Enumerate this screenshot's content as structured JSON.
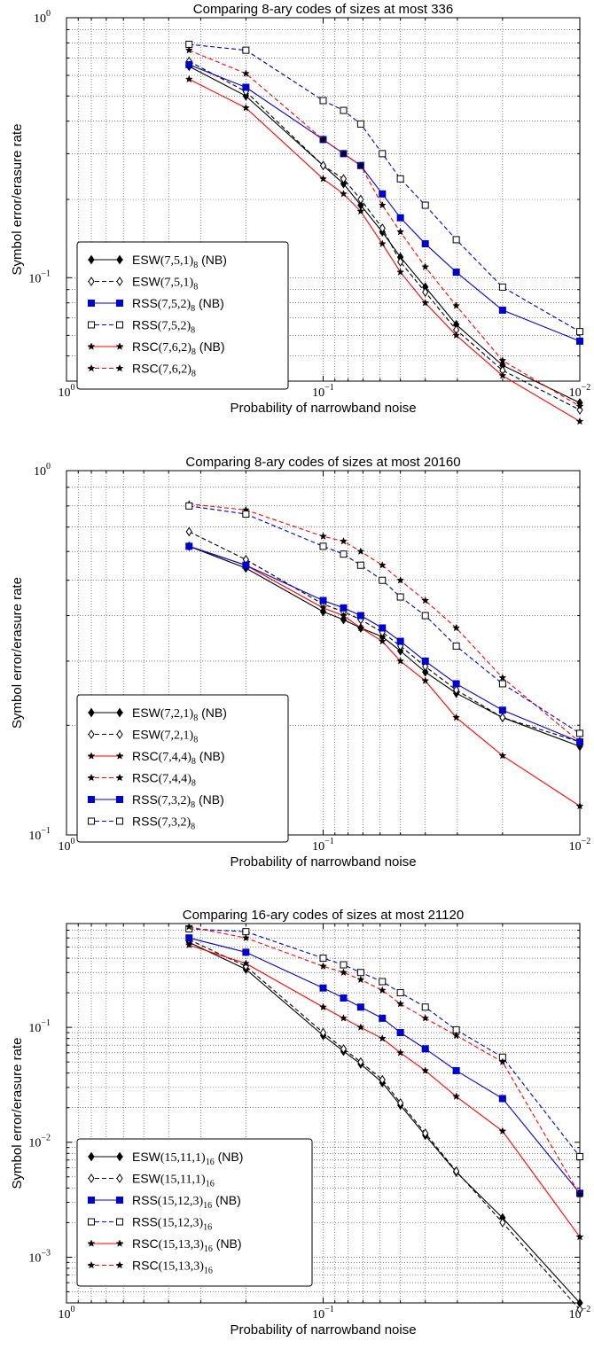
{
  "chart_data": [
    {
      "type": "line",
      "title": "Comparing 8-ary codes of sizes at most 336",
      "xlabel": "Probability of narrowband noise",
      "ylabel": "Symbol error/erasure rate",
      "x_scale": "log",
      "x_reversed": true,
      "xlim": [
        1,
        0.01
      ],
      "y_scale": "log",
      "ylim": [
        0.04,
        1
      ],
      "xticks": [
        {
          "v": 1,
          "t": "10",
          "e": "0"
        },
        {
          "v": 0.1,
          "t": "10",
          "e": "−1"
        },
        {
          "v": 0.01,
          "t": "10",
          "e": "−2"
        }
      ],
      "yticks": [
        {
          "v": 1,
          "t": "10",
          "e": "0"
        },
        {
          "v": 0.1,
          "t": "10",
          "e": "−1"
        }
      ],
      "grid": true,
      "legend_position": "lower-left",
      "x": [
        0.333,
        0.2,
        0.1,
        0.0833,
        0.0714,
        0.0588,
        0.05,
        0.04,
        0.0303,
        0.02,
        0.01
      ],
      "series": [
        {
          "name": "ESW(7,5,1)_8 (NB)",
          "base": "ESW",
          "args": "(7,5,1)",
          "sub": "8",
          "nb": true,
          "color": "#000000",
          "dash": false,
          "marker": "diamond-filled",
          "values": [
            0.65,
            0.5,
            0.27,
            0.23,
            0.19,
            0.15,
            0.12,
            0.092,
            0.066,
            0.046,
            0.033
          ]
        },
        {
          "name": "ESW(7,5,1)_8",
          "base": "ESW",
          "args": "(7,5,1)",
          "sub": "8",
          "nb": false,
          "color": "#000000",
          "dash": true,
          "marker": "diamond-open",
          "values": [
            0.68,
            0.52,
            0.27,
            0.24,
            0.2,
            0.155,
            0.115,
            0.088,
            0.063,
            0.044,
            0.031
          ]
        },
        {
          "name": "RSS(7,5,2)_8 (NB)",
          "base": "RSS",
          "args": "(7,5,2)",
          "sub": "8",
          "nb": true,
          "color": "#0000cc",
          "dash": false,
          "marker": "square-filled",
          "values": [
            0.66,
            0.54,
            0.34,
            0.3,
            0.27,
            0.21,
            0.17,
            0.135,
            0.105,
            0.075,
            0.057
          ]
        },
        {
          "name": "RSS(7,5,2)_8",
          "base": "RSS",
          "args": "(7,5,2)",
          "sub": "8",
          "nb": false,
          "color": "#0000cc",
          "dash": true,
          "marker": "square-open",
          "values": [
            0.79,
            0.75,
            0.48,
            0.44,
            0.39,
            0.3,
            0.24,
            0.19,
            0.14,
            0.092,
            0.062
          ]
        },
        {
          "name": "RSC(7,6,2)_8 (NB)",
          "base": "RSC",
          "args": "(7,6,2)",
          "sub": "8",
          "nb": true,
          "color": "#ff0000",
          "dash": false,
          "marker": "star",
          "values": [
            0.58,
            0.45,
            0.24,
            0.21,
            0.18,
            0.135,
            0.105,
            0.08,
            0.06,
            0.042,
            0.028
          ]
        },
        {
          "name": "RSC(7,6,2)_8",
          "base": "RSC",
          "args": "(7,6,2)",
          "sub": "8",
          "nb": false,
          "color": "#ff0000",
          "dash": true,
          "marker": "star",
          "values": [
            0.75,
            0.61,
            0.34,
            0.3,
            0.27,
            0.19,
            0.15,
            0.11,
            0.078,
            0.048,
            0.032
          ]
        }
      ]
    },
    {
      "type": "line",
      "title": "Comparing 8-ary codes of sizes at most 20160",
      "xlabel": "Probability of narrowband noise",
      "ylabel": "Symbol error/erasure rate",
      "x_scale": "log",
      "x_reversed": true,
      "xlim": [
        1,
        0.01
      ],
      "y_scale": "log",
      "ylim": [
        0.1,
        1
      ],
      "xticks": [
        {
          "v": 1,
          "t": "10",
          "e": "0"
        },
        {
          "v": 0.1,
          "t": "10",
          "e": "−1"
        },
        {
          "v": 0.01,
          "t": "10",
          "e": "−2"
        }
      ],
      "yticks": [
        {
          "v": 1,
          "t": "10",
          "e": "0"
        },
        {
          "v": 0.1,
          "t": "10",
          "e": "−1"
        }
      ],
      "grid": true,
      "legend_position": "lower-left",
      "x": [
        0.333,
        0.2,
        0.1,
        0.0833,
        0.0714,
        0.0588,
        0.05,
        0.04,
        0.0303,
        0.02,
        0.01
      ],
      "series": [
        {
          "name": "ESW(7,2,1)_8 (NB)",
          "base": "ESW",
          "args": "(7,2,1)",
          "sub": "8",
          "nb": true,
          "color": "#000000",
          "dash": false,
          "marker": "diamond-filled",
          "values": [
            0.62,
            0.54,
            0.41,
            0.39,
            0.37,
            0.35,
            0.32,
            0.28,
            0.245,
            0.21,
            0.175
          ]
        },
        {
          "name": "ESW(7,2,1)_8",
          "base": "ESW",
          "args": "(7,2,1)",
          "sub": "8",
          "nb": false,
          "color": "#000000",
          "dash": true,
          "marker": "diamond-open",
          "values": [
            0.68,
            0.57,
            0.43,
            0.41,
            0.39,
            0.36,
            0.33,
            0.29,
            0.25,
            0.21,
            0.18
          ]
        },
        {
          "name": "RSC(7,4,4)_8 (NB)",
          "base": "RSC",
          "args": "(7,4,4)",
          "sub": "8",
          "nb": true,
          "color": "#ff0000",
          "dash": false,
          "marker": "star",
          "values": [
            0.62,
            0.55,
            0.42,
            0.4,
            0.37,
            0.34,
            0.3,
            0.265,
            0.21,
            0.165,
            0.12
          ]
        },
        {
          "name": "RSC(7,4,4)_8",
          "base": "RSC",
          "args": "(7,4,4)",
          "sub": "8",
          "nb": false,
          "color": "#ff0000",
          "dash": true,
          "marker": "star",
          "values": [
            0.81,
            0.78,
            0.66,
            0.64,
            0.6,
            0.55,
            0.5,
            0.44,
            0.37,
            0.27,
            0.18
          ]
        },
        {
          "name": "RSS(7,3,2)_8 (NB)",
          "base": "RSS",
          "args": "(7,3,2)",
          "sub": "8",
          "nb": true,
          "color": "#0000cc",
          "dash": false,
          "marker": "square-filled",
          "values": [
            0.62,
            0.55,
            0.44,
            0.42,
            0.4,
            0.37,
            0.34,
            0.3,
            0.26,
            0.22,
            0.18
          ]
        },
        {
          "name": "RSS(7,3,2)_8",
          "base": "RSS",
          "args": "(7,3,2)",
          "sub": "8",
          "nb": false,
          "color": "#0000cc",
          "dash": true,
          "marker": "square-open",
          "values": [
            0.8,
            0.76,
            0.62,
            0.59,
            0.55,
            0.5,
            0.45,
            0.4,
            0.33,
            0.26,
            0.19
          ]
        }
      ]
    },
    {
      "type": "line",
      "title": "Comparing 16-ary codes of sizes at most 21120",
      "xlabel": "Probability of narrowband noise",
      "ylabel": "Symbol error/erasure rate",
      "x_scale": "log",
      "x_reversed": true,
      "xlim": [
        1,
        0.01
      ],
      "y_scale": "log",
      "ylim": [
        0.0004,
        0.8
      ],
      "xticks": [
        {
          "v": 1,
          "t": "10",
          "e": "0"
        },
        {
          "v": 0.1,
          "t": "10",
          "e": "−1"
        },
        {
          "v": 0.01,
          "t": "10",
          "e": "−2"
        }
      ],
      "yticks": [
        {
          "v": 0.1,
          "t": "10",
          "e": "−1"
        },
        {
          "v": 0.01,
          "t": "10",
          "e": "−2"
        },
        {
          "v": 0.001,
          "t": "10",
          "e": "−3"
        }
      ],
      "grid": true,
      "legend_position": "lower-left",
      "x": [
        0.333,
        0.2,
        0.1,
        0.0833,
        0.0714,
        0.0588,
        0.05,
        0.04,
        0.0303,
        0.02,
        0.01
      ],
      "series": [
        {
          "name": "ESW(15,11,1)_16 (NB)",
          "base": "ESW",
          "args": "(15,11,1)",
          "sub": "16",
          "nb": true,
          "color": "#000000",
          "dash": false,
          "marker": "diamond-filled",
          "values": [
            0.55,
            0.32,
            0.085,
            0.062,
            0.048,
            0.033,
            0.021,
            0.0115,
            0.0055,
            0.0022,
            0.0004
          ]
        },
        {
          "name": "ESW(15,11,1)_16",
          "base": "ESW",
          "args": "(15,11,1)",
          "sub": "16",
          "nb": false,
          "color": "#000000",
          "dash": true,
          "marker": "diamond-open",
          "values": [
            0.58,
            0.34,
            0.09,
            0.065,
            0.05,
            0.035,
            0.022,
            0.012,
            0.0056,
            0.002,
            0.00035
          ]
        },
        {
          "name": "RSS(15,12,3)_16 (NB)",
          "base": "RSS",
          "args": "(15,12,3)",
          "sub": "16",
          "nb": true,
          "color": "#0000cc",
          "dash": false,
          "marker": "square-filled",
          "values": [
            0.6,
            0.45,
            0.22,
            0.18,
            0.15,
            0.12,
            0.09,
            0.065,
            0.042,
            0.024,
            0.0036
          ]
        },
        {
          "name": "RSS(15,12,3)_16",
          "base": "RSS",
          "args": "(15,12,3)",
          "sub": "16",
          "nb": false,
          "color": "#0000cc",
          "dash": true,
          "marker": "square-open",
          "values": [
            0.72,
            0.68,
            0.4,
            0.35,
            0.3,
            0.25,
            0.2,
            0.15,
            0.095,
            0.055,
            0.0075
          ]
        },
        {
          "name": "RSC(15,13,3)_16 (NB)",
          "base": "RSC",
          "args": "(15,13,3)",
          "sub": "16",
          "nb": true,
          "color": "#ff0000",
          "dash": false,
          "marker": "star",
          "values": [
            0.52,
            0.36,
            0.15,
            0.12,
            0.1,
            0.08,
            0.06,
            0.042,
            0.025,
            0.0125,
            0.0015
          ]
        },
        {
          "name": "RSC(15,13,3)_16",
          "base": "RSC",
          "args": "(15,13,3)",
          "sub": "16",
          "nb": false,
          "color": "#ff0000",
          "dash": true,
          "marker": "star",
          "values": [
            0.75,
            0.6,
            0.34,
            0.3,
            0.26,
            0.21,
            0.16,
            0.12,
            0.085,
            0.05,
            0.0035
          ]
        }
      ]
    }
  ]
}
